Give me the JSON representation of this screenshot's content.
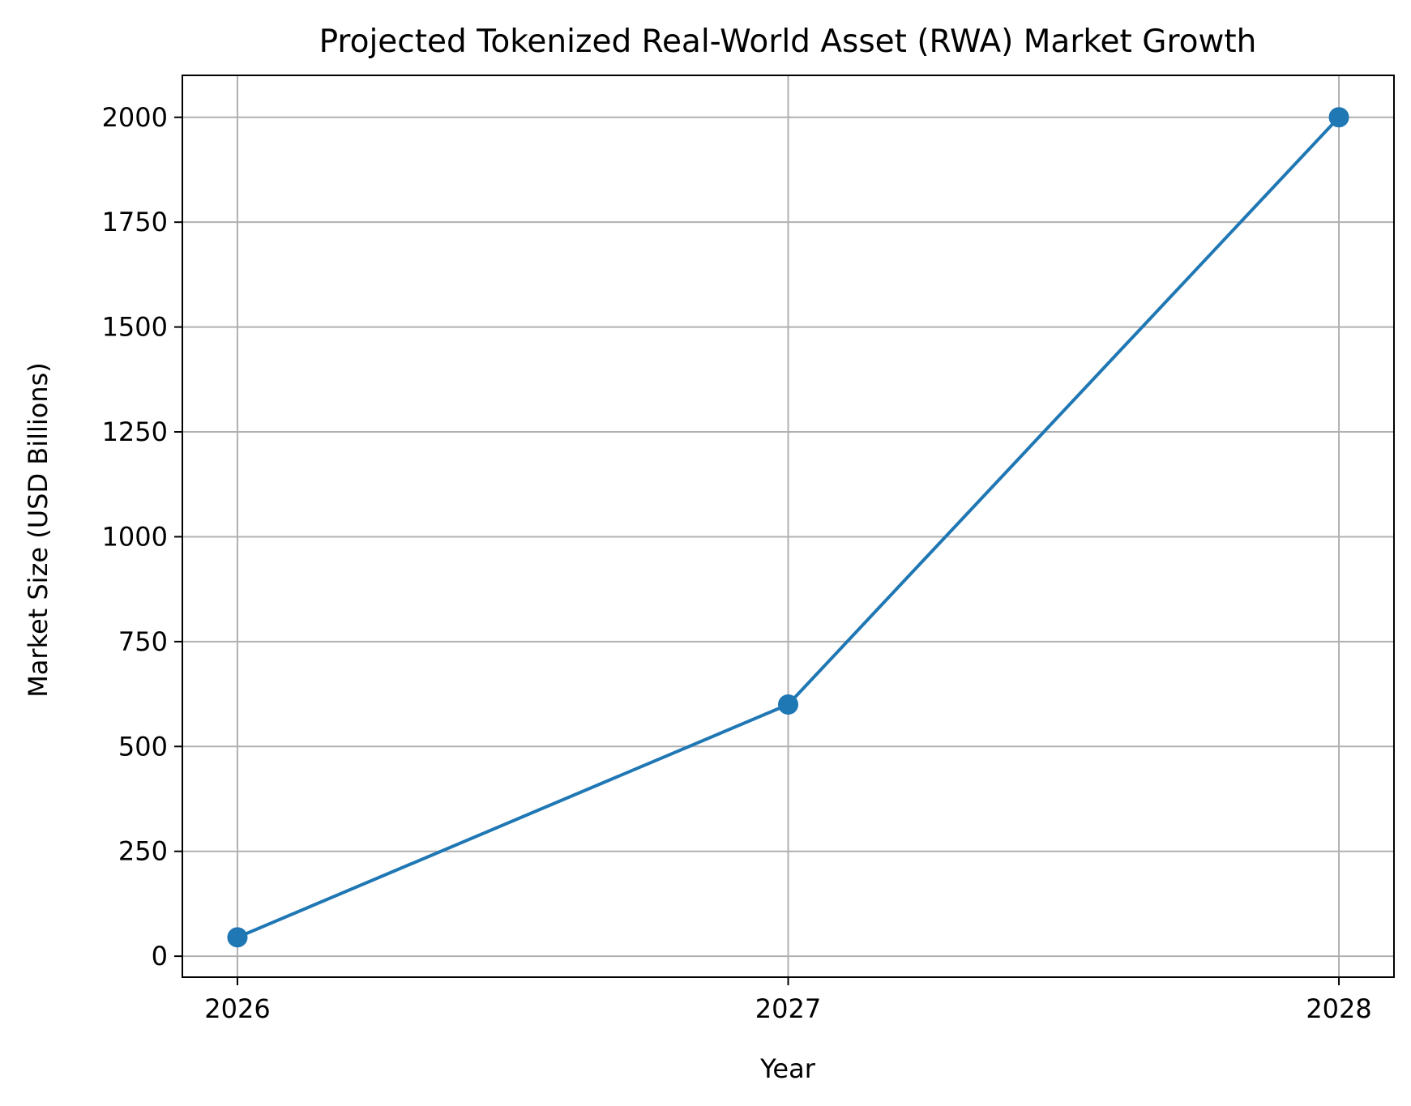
{
  "chart_data": {
    "type": "line",
    "title": "Projected Tokenized Real-World Asset (RWA) Market Growth",
    "xlabel": "Year",
    "ylabel": "Market Size (USD Billions)",
    "x": [
      2026,
      2027,
      2028
    ],
    "x_tick_labels": [
      "2026",
      "2027",
      "2028"
    ],
    "series": [
      {
        "values": [
          45,
          600,
          2000
        ],
        "color": "#1f77b4",
        "marker": "circle"
      }
    ],
    "xlim": [
      2025.9,
      2028.1
    ],
    "ylim": [
      -50,
      2100
    ],
    "y_ticks": [
      0,
      250,
      500,
      750,
      1000,
      1250,
      1500,
      1750,
      2000
    ],
    "y_tick_labels": [
      "0",
      "250",
      "500",
      "750",
      "1000",
      "1250",
      "1500",
      "1750",
      "2000"
    ],
    "grid": true,
    "grid_color": "#b0b0b0",
    "legend": false
  }
}
